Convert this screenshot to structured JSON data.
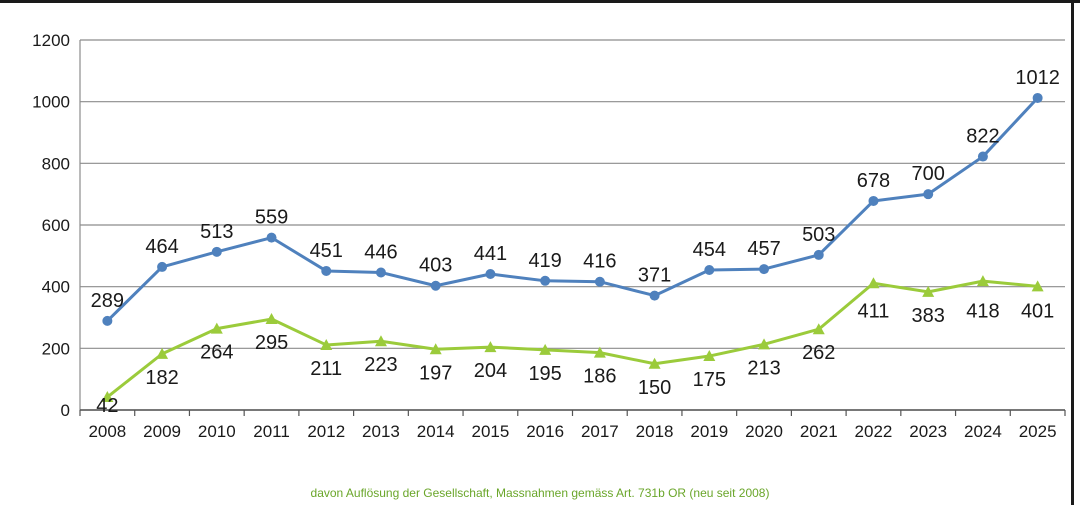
{
  "chart_data": {
    "type": "line",
    "categories": [
      "2008",
      "2009",
      "2010",
      "2011",
      "2012",
      "2013",
      "2014",
      "2015",
      "2016",
      "2017",
      "2018",
      "2019",
      "2020",
      "2021",
      "2022",
      "2023",
      "2024",
      "2025"
    ],
    "series": [
      {
        "color": "#4f81bd",
        "marker": "circle",
        "values": [
          289,
          464,
          513,
          559,
          451,
          446,
          403,
          441,
          419,
          416,
          371,
          454,
          457,
          503,
          678,
          700,
          822,
          1012
        ]
      },
      {
        "name": "davon Auflösung der Gesellschaft, Massnahmen gemäss Art. 731b OR (neu seit 2008)",
        "color": "#9bcb3b",
        "marker": "triangle",
        "values": [
          42,
          182,
          264,
          295,
          211,
          223,
          197,
          204,
          195,
          186,
          150,
          175,
          213,
          262,
          411,
          383,
          418,
          401
        ]
      }
    ],
    "ylim": [
      0,
      1200
    ],
    "yticks": [
      0,
      200,
      400,
      600,
      800,
      1000,
      1200
    ],
    "grid": true,
    "legend_position": "bottom",
    "xlabel": "",
    "ylabel": "",
    "title": ""
  }
}
